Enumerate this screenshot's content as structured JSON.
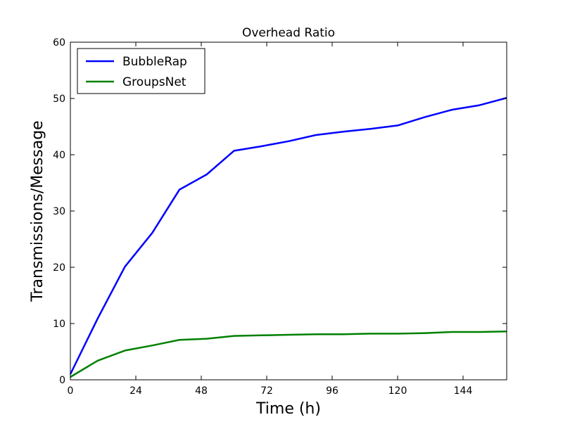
{
  "chart_data": {
    "type": "line",
    "title": "Overhead Ratio",
    "xlabel": "Time (h)",
    "ylabel": "Transmissions/Message",
    "xlim": [
      0,
      160
    ],
    "ylim": [
      0,
      60
    ],
    "xticks": [
      0,
      24,
      48,
      72,
      96,
      120,
      144
    ],
    "yticks": [
      0,
      10,
      20,
      30,
      40,
      50,
      60
    ],
    "grid": false,
    "legend_position": "upper left",
    "series": [
      {
        "name": "BubbleRap",
        "color": "#0000ff",
        "x": [
          0,
          10,
          20,
          30,
          40,
          50,
          60,
          70,
          80,
          90,
          100,
          110,
          120,
          130,
          140,
          150,
          160
        ],
        "y": [
          1.0,
          10.9,
          20.1,
          26.1,
          33.8,
          36.5,
          40.7,
          41.5,
          42.4,
          43.5,
          44.1,
          44.6,
          45.2,
          46.7,
          48.0,
          48.8,
          50.1
        ]
      },
      {
        "name": "GroupsNet",
        "color": "#008000",
        "x": [
          0,
          10,
          20,
          30,
          40,
          50,
          60,
          70,
          80,
          90,
          100,
          110,
          120,
          130,
          140,
          150,
          160
        ],
        "y": [
          0.5,
          3.4,
          5.2,
          6.1,
          7.1,
          7.3,
          7.8,
          7.9,
          8.0,
          8.1,
          8.1,
          8.2,
          8.2,
          8.3,
          8.5,
          8.5,
          8.6
        ]
      }
    ]
  }
}
